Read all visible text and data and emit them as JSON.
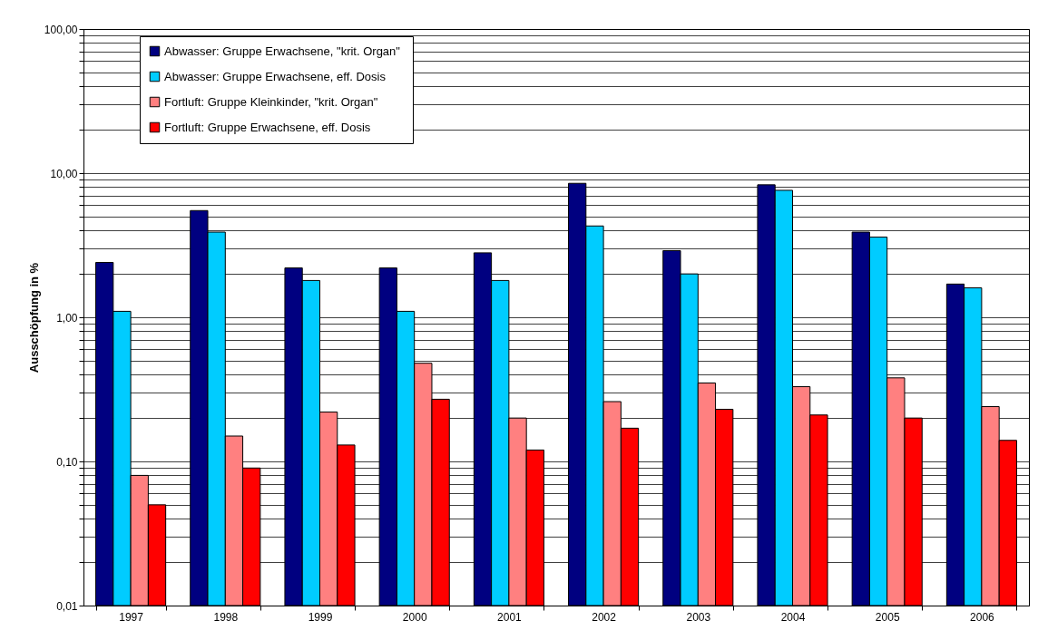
{
  "chart_data": {
    "type": "bar",
    "ylabel": "Ausschöpfung in %",
    "log": true,
    "grid": "y",
    "legend": "top left",
    "categories": [
      "1997",
      "1998",
      "1999",
      "2000",
      "2001",
      "2002",
      "2003",
      "2004",
      "2005",
      "2006"
    ],
    "ylim": [
      0.01,
      100
    ],
    "yticks": [
      {
        "value": 0.01,
        "label": "0,01"
      },
      {
        "value": 0.02,
        "label": null
      },
      {
        "value": 0.03,
        "label": null
      },
      {
        "value": 0.04,
        "label": null
      },
      {
        "value": 0.05,
        "label": null
      },
      {
        "value": 0.06,
        "label": null
      },
      {
        "value": 0.07,
        "label": null
      },
      {
        "value": 0.08,
        "label": null
      },
      {
        "value": 0.09,
        "label": null
      },
      {
        "value": 0.1,
        "label": "0,10"
      },
      {
        "value": 0.2,
        "label": null
      },
      {
        "value": 0.3,
        "label": null
      },
      {
        "value": 0.4,
        "label": null
      },
      {
        "value": 0.5,
        "label": null
      },
      {
        "value": 0.6,
        "label": null
      },
      {
        "value": 0.7,
        "label": null
      },
      {
        "value": 0.8,
        "label": null
      },
      {
        "value": 0.9,
        "label": null
      },
      {
        "value": 1,
        "label": "1,00"
      },
      {
        "value": 2,
        "label": null
      },
      {
        "value": 3,
        "label": null
      },
      {
        "value": 4,
        "label": null
      },
      {
        "value": 5,
        "label": null
      },
      {
        "value": 6,
        "label": null
      },
      {
        "value": 7,
        "label": null
      },
      {
        "value": 8,
        "label": null
      },
      {
        "value": 9,
        "label": null
      },
      {
        "value": 10,
        "label": "10,00"
      },
      {
        "value": 20,
        "label": null
      },
      {
        "value": 30,
        "label": null
      },
      {
        "value": 40,
        "label": null
      },
      {
        "value": 50,
        "label": null
      },
      {
        "value": 60,
        "label": null
      },
      {
        "value": 70,
        "label": null
      },
      {
        "value": 80,
        "label": null
      },
      {
        "value": 90,
        "label": null
      },
      {
        "value": 100,
        "label": "100,00"
      }
    ],
    "series": [
      {
        "name": "Abwasser:  Gruppe Erwachsene, \"krit. Organ\"",
        "color": "#000080",
        "values": [
          2.4,
          5.5,
          2.2,
          2.2,
          2.8,
          8.5,
          2.9,
          8.3,
          3.9,
          1.7
        ]
      },
      {
        "name": "Abwasser:  Gruppe Erwachsene, eff. Dosis",
        "color": "#00ccff",
        "values": [
          1.1,
          3.9,
          1.8,
          1.1,
          1.8,
          4.3,
          2.0,
          7.6,
          3.6,
          1.6
        ]
      },
      {
        "name": "Fortluft:  Gruppe Kleinkinder, \"krit. Organ\"",
        "color": "#ff8080",
        "values": [
          0.08,
          0.15,
          0.22,
          0.48,
          0.2,
          0.26,
          0.35,
          0.33,
          0.38,
          0.24
        ]
      },
      {
        "name": "Fortluft:  Gruppe Erwachsene, eff. Dosis",
        "color": "#ff0000",
        "values": [
          0.05,
          0.09,
          0.13,
          0.27,
          0.12,
          0.17,
          0.23,
          0.21,
          0.2,
          0.14
        ]
      }
    ]
  }
}
